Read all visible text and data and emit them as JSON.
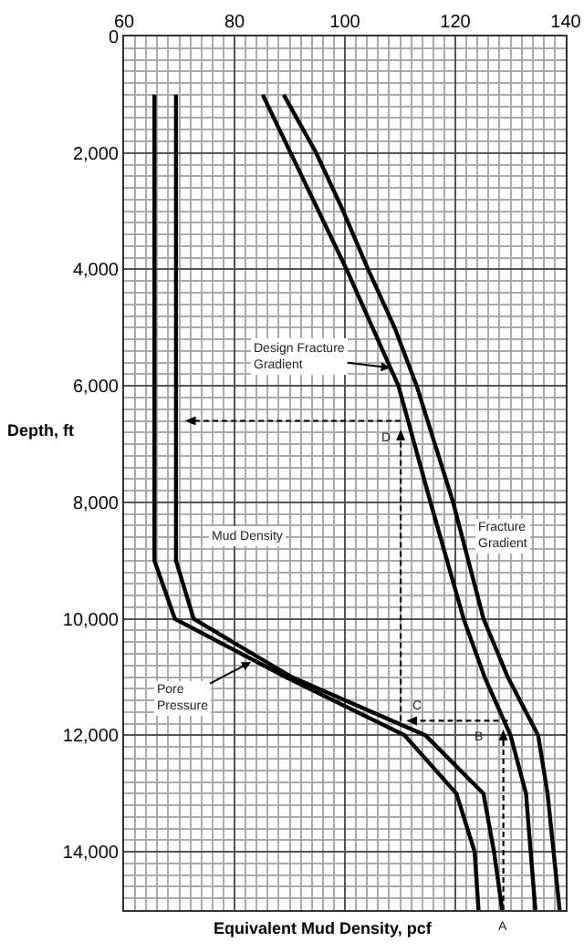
{
  "chart_data": {
    "type": "line",
    "xlabel": "Equivalent Mud Density, pcf",
    "ylabel": "Depth, ft",
    "xlim": [
      60,
      140
    ],
    "xticks": [
      60,
      80,
      100,
      120,
      140
    ],
    "ylim": [
      15000,
      0
    ],
    "yticks": [
      0,
      {
        "value": 2000,
        "label": "2,000"
      },
      {
        "value": 4000,
        "label": "4,000"
      },
      {
        "value": 6000,
        "label": "6,000"
      },
      {
        "value": 8000,
        "label": "8,000"
      },
      {
        "value": 10000,
        "label": "10,000"
      },
      {
        "value": 12000,
        "label": "12,000"
      },
      {
        "value": 14000,
        "label": "14,000"
      }
    ],
    "grid": true,
    "marker": "none",
    "line_style": "solid",
    "series": [
      {
        "color": "#000000",
        "x": [
          65.5,
          65.5,
          69.2,
          89.3,
          110.8,
          120.2,
          123.5,
          124.2
        ],
        "values": [
          1000,
          9000,
          10000,
          11000,
          12000,
          13000,
          14000,
          15000
        ]
      },
      {
        "color": "#000000",
        "x": [
          69.4,
          69.4,
          72.6,
          90.4,
          114.6,
          125.1,
          127,
          128.5
        ],
        "values": [
          1000,
          9000,
          10000,
          11000,
          12000,
          13000,
          14000,
          15000
        ]
      },
      {
        "color": "#000000",
        "x": [
          85.1,
          100.3,
          105,
          109.7,
          115.5,
          121.5,
          125.3,
          130,
          132.8,
          134.5
        ],
        "values": [
          1000,
          4000,
          5000,
          6000,
          8000,
          10000,
          11000,
          12000,
          13000,
          15000
        ]
      },
      {
        "color": "#000000",
        "x": [
          88.9,
          94.8,
          99.7,
          104.2,
          109,
          113,
          119.6,
          125.1,
          129.5,
          135,
          136.7,
          138.9
        ],
        "values": [
          1000,
          2000,
          3000,
          4000,
          5000,
          6000,
          8000,
          10000,
          11000,
          12000,
          13000,
          15000
        ]
      }
    ],
    "annotations": [
      {
        "text": "Design Fracture\nGradient",
        "x": 108.2,
        "y": 5690
      },
      "Mud Density",
      "Fracture\nGradient",
      {
        "text": "Pore\nPressure",
        "x": 83,
        "y": 10740
      },
      {
        "text": "D",
        "x": 110.1,
        "y": 6750
      },
      {
        "text": "C",
        "x": 111.1,
        "y": 11750
      },
      {
        "text": "B",
        "x": 128.7,
        "y": 11900
      },
      {
        "text": "A",
        "x": 128.7,
        "y": 15000
      }
    ]
  }
}
